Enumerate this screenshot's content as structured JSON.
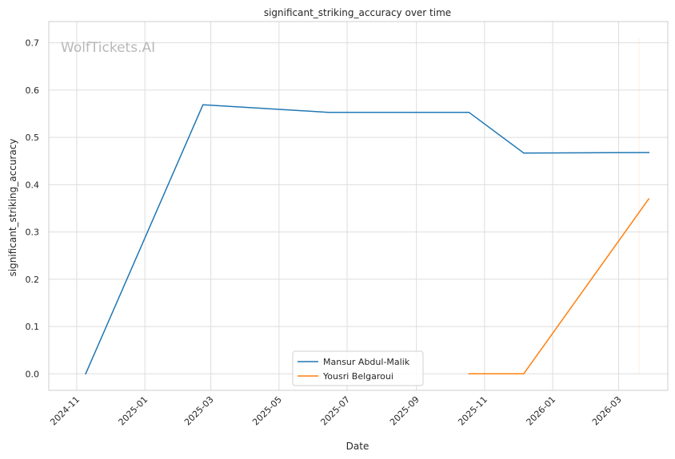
{
  "watermark": "WolfTickets.AI",
  "chart_data": {
    "type": "line",
    "title": "significant_striking_accuracy over time",
    "xlabel": "Date",
    "ylabel": "significant_striking_accuracy",
    "x_ticks": [
      "2024-11",
      "2025-01",
      "2025-03",
      "2025-05",
      "2025-07",
      "2025-09",
      "2025-11",
      "2026-01",
      "2026-03"
    ],
    "y_ticks": [
      "0.0",
      "0.1",
      "0.2",
      "0.3",
      "0.4",
      "0.5",
      "0.6",
      "0.7"
    ],
    "ylim": [
      -0.035,
      0.745
    ],
    "xlim": [
      "2024-10-07",
      "2026-04-14"
    ],
    "grid": true,
    "legend_position": "lower center",
    "series": [
      {
        "name": "Mansur Abdul-Malik",
        "color": "#1f77b4",
        "points": [
          {
            "x": "2024-11-09",
            "y": 0.0
          },
          {
            "x": "2025-02-22",
            "y": 0.569
          },
          {
            "x": "2025-06-14",
            "y": 0.553
          },
          {
            "x": "2025-10-18",
            "y": 0.553
          },
          {
            "x": "2025-12-06",
            "y": 0.467
          },
          {
            "x": "2026-03-28",
            "y": 0.468
          }
        ]
      },
      {
        "name": "Yousri Belgaroui",
        "color": "#ff7f0e",
        "points": [
          {
            "x": "2025-10-18",
            "y": 0.0
          },
          {
            "x": "2025-12-06",
            "y": 0.0
          },
          {
            "x": "2026-03-28",
            "y": 0.37
          }
        ]
      }
    ]
  }
}
